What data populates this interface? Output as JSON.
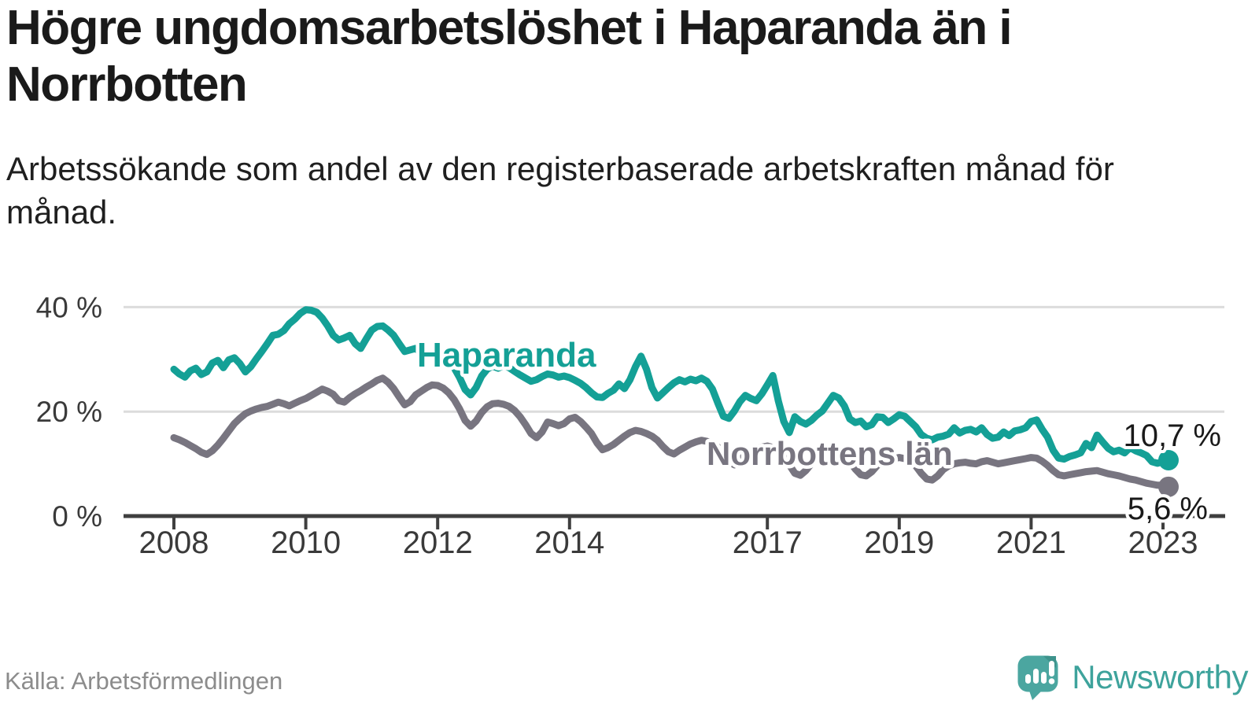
{
  "header": {
    "title": "Högre ungdomsarbetslöshet i Haparanda än i Norrbotten",
    "subtitle": "Arbetssökande som andel av den registerbaserade arbetskraften månad för månad."
  },
  "footer": {
    "source": "Källa: Arbetsförmedlingen",
    "brand": "Newsworthy",
    "logo_icon": "speech-bubble-bar-chart-icon"
  },
  "colors": {
    "haparanda": "#14A096",
    "norrbotten": "#787580",
    "axis": "#3f3f3f",
    "grid": "#dcdcdc",
    "label_text": "#1a1a1a",
    "brand_teal": "#4BA6A0"
  },
  "chart_data": {
    "type": "line",
    "title": "Högre ungdomsarbetslöshet i Haparanda än i Norrbotten",
    "xlabel": "",
    "ylabel": "Arbetssökande som andel av den registerbaserade arbetskraften",
    "unit": "%",
    "x_start": 2008.0,
    "x_step_months": 1,
    "x_end_label": "februari 2023",
    "xlim": [
      2007.25,
      2023.95
    ],
    "ylim": [
      0,
      42
    ],
    "grid": "horizontal",
    "legend": "inline-labels",
    "x_ticks": [
      {
        "year": 2008,
        "label": "2008"
      },
      {
        "year": 2010,
        "label": "2010"
      },
      {
        "year": 2012,
        "label": "2012"
      },
      {
        "year": 2014,
        "label": "2014"
      },
      {
        "year": 2017,
        "label": "2017"
      },
      {
        "year": 2019,
        "label": "2019"
      },
      {
        "year": 2021,
        "label": "2021"
      },
      {
        "year": 2023,
        "label": "2023"
      }
    ],
    "y_ticks": [
      {
        "value": 0,
        "label": "0 %"
      },
      {
        "value": 20,
        "label": "20 %"
      },
      {
        "value": 40,
        "label": "40 %"
      }
    ],
    "series": [
      {
        "name": "Haparanda",
        "label_text": "Haparanda",
        "end_label": "10,7 %",
        "end_value": 10.7,
        "color": "#14A096",
        "values": [
          28.1,
          27.2,
          26.6,
          27.8,
          28.3,
          27.1,
          27.6,
          29.3,
          29.8,
          28.4,
          29.9,
          30.3,
          29.2,
          27.6,
          28.6,
          30.1,
          31.5,
          33.0,
          34.6,
          34.8,
          35.5,
          36.8,
          37.7,
          38.8,
          39.5,
          39.4,
          39.0,
          37.9,
          36.4,
          34.6,
          33.7,
          34.1,
          34.6,
          33.0,
          32.1,
          33.9,
          35.6,
          36.3,
          36.4,
          35.6,
          34.6,
          33.0,
          31.5,
          31.8,
          32.1,
          31.2,
          30.6,
          30.9,
          31.2,
          30.6,
          29.8,
          28.4,
          26.5,
          24.2,
          23.2,
          24.6,
          26.8,
          28.1,
          28.7,
          28.3,
          28.8,
          28.4,
          27.7,
          27.0,
          26.4,
          25.8,
          26.1,
          26.7,
          27.2,
          27.0,
          26.6,
          26.8,
          26.5,
          26.0,
          25.4,
          24.6,
          23.6,
          22.8,
          22.7,
          23.5,
          24.1,
          25.3,
          24.4,
          26.1,
          28.6,
          30.6,
          28.1,
          24.6,
          22.6,
          23.6,
          24.6,
          25.5,
          26.1,
          25.7,
          26.2,
          25.9,
          26.4,
          25.8,
          24.3,
          21.6,
          19.1,
          18.7,
          20.1,
          21.9,
          23.1,
          22.5,
          22.1,
          23.4,
          25.1,
          26.9,
          22.0,
          18.1,
          16.0,
          19.0,
          18.1,
          17.6,
          18.3,
          19.3,
          20.1,
          21.6,
          23.1,
          22.6,
          21.1,
          18.6,
          17.9,
          18.2,
          17.1,
          17.5,
          19.0,
          18.9,
          17.9,
          18.6,
          19.4,
          19.1,
          18.1,
          17.1,
          15.6,
          14.9,
          14.6,
          15.1,
          15.3,
          15.7,
          16.9,
          15.9,
          16.4,
          16.6,
          16.1,
          16.9,
          15.6,
          14.9,
          15.1,
          16.1,
          15.4,
          16.3,
          16.5,
          16.9,
          18.1,
          18.4,
          16.6,
          15.1,
          12.6,
          11.1,
          10.9,
          11.4,
          11.7,
          12.1,
          13.9,
          13.1,
          15.5,
          14.2,
          13.0,
          12.3,
          12.6,
          12.1,
          13.1,
          12.5,
          12.1,
          11.6,
          10.4,
          10.1,
          10.4,
          10.7
        ]
      },
      {
        "name": "Norrbottens län",
        "label_text": "Norrbottens län",
        "end_label": "5,6 %",
        "end_value": 5.6,
        "color": "#787580",
        "values": [
          15.0,
          14.6,
          14.1,
          13.5,
          12.9,
          12.2,
          11.8,
          12.5,
          13.6,
          14.9,
          16.3,
          17.7,
          18.7,
          19.6,
          20.1,
          20.5,
          20.8,
          21.0,
          21.4,
          21.8,
          21.5,
          21.1,
          21.6,
          22.1,
          22.5,
          23.1,
          23.7,
          24.3,
          23.9,
          23.3,
          22.1,
          21.8,
          22.7,
          23.4,
          24.0,
          24.7,
          25.3,
          26.0,
          26.4,
          25.6,
          24.4,
          22.8,
          21.3,
          21.9,
          23.2,
          23.9,
          24.6,
          25.1,
          25.0,
          24.5,
          23.6,
          22.3,
          20.5,
          18.3,
          17.2,
          18.2,
          19.8,
          20.9,
          21.5,
          21.6,
          21.4,
          21.0,
          20.2,
          19.0,
          17.5,
          15.8,
          15.0,
          16.1,
          18.0,
          17.7,
          17.3,
          17.7,
          18.6,
          18.9,
          18.1,
          17.0,
          15.8,
          14.0,
          12.7,
          13.1,
          13.7,
          14.5,
          15.3,
          16.0,
          16.4,
          16.2,
          15.8,
          15.3,
          14.5,
          13.3,
          12.3,
          11.9,
          12.6,
          13.2,
          13.8,
          14.2,
          14.5,
          14.3,
          13.8,
          13.2,
          12.0,
          10.4,
          9.8,
          10.6,
          11.8,
          12.5,
          12.9,
          13.2,
          13.4,
          13.1,
          12.4,
          11.4,
          9.8,
          8.2,
          7.8,
          8.7,
          10.0,
          10.9,
          11.4,
          11.8,
          12.0,
          11.8,
          11.2,
          10.4,
          9.0,
          7.9,
          7.7,
          8.5,
          9.7,
          10.4,
          10.8,
          11.0,
          11.2,
          11.0,
          10.5,
          9.6,
          8.2,
          7.1,
          6.9,
          7.7,
          8.9,
          9.6,
          10.0,
          10.2,
          10.3,
          10.1,
          10.0,
          10.4,
          10.6,
          10.3,
          10.0,
          10.2,
          10.4,
          10.6,
          10.8,
          11.0,
          11.2,
          11.1,
          10.5,
          9.7,
          8.7,
          7.9,
          7.7,
          7.9,
          8.1,
          8.3,
          8.5,
          8.6,
          8.7,
          8.4,
          8.1,
          7.9,
          7.7,
          7.4,
          7.1,
          6.9,
          6.6,
          6.3,
          6.1,
          5.9,
          5.9,
          5.6
        ]
      }
    ]
  }
}
